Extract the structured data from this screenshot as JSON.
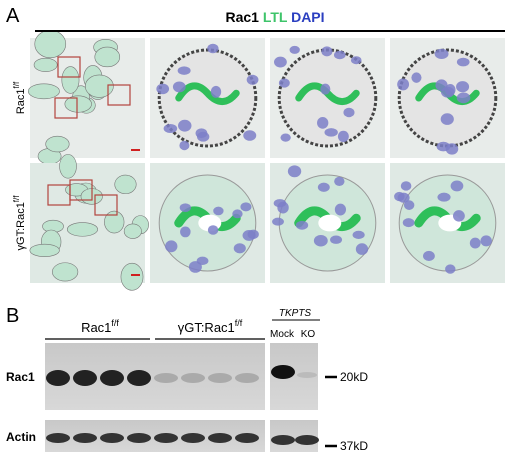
{
  "panel_a": {
    "label": "A",
    "title": {
      "rac1": "Rac1",
      "ltl": "LTL",
      "dapi": "DAPI"
    },
    "rows": [
      {
        "base": "Rac1",
        "sup": "f/f"
      },
      {
        "base": "γGT:Rac1",
        "sup": "f/f"
      }
    ]
  },
  "panel_b": {
    "label": "B",
    "groups": [
      {
        "base": "Rac1",
        "sup": "f/f"
      },
      {
        "base": "γGT:Rac1",
        "sup": "f/f"
      }
    ],
    "cell_line": "TKPTS",
    "lanes": [
      "Mock",
      "KO"
    ],
    "blots": [
      {
        "name": "Rac1",
        "marker": "20kD"
      },
      {
        "name": "Actin",
        "marker": "37kD"
      }
    ]
  }
}
